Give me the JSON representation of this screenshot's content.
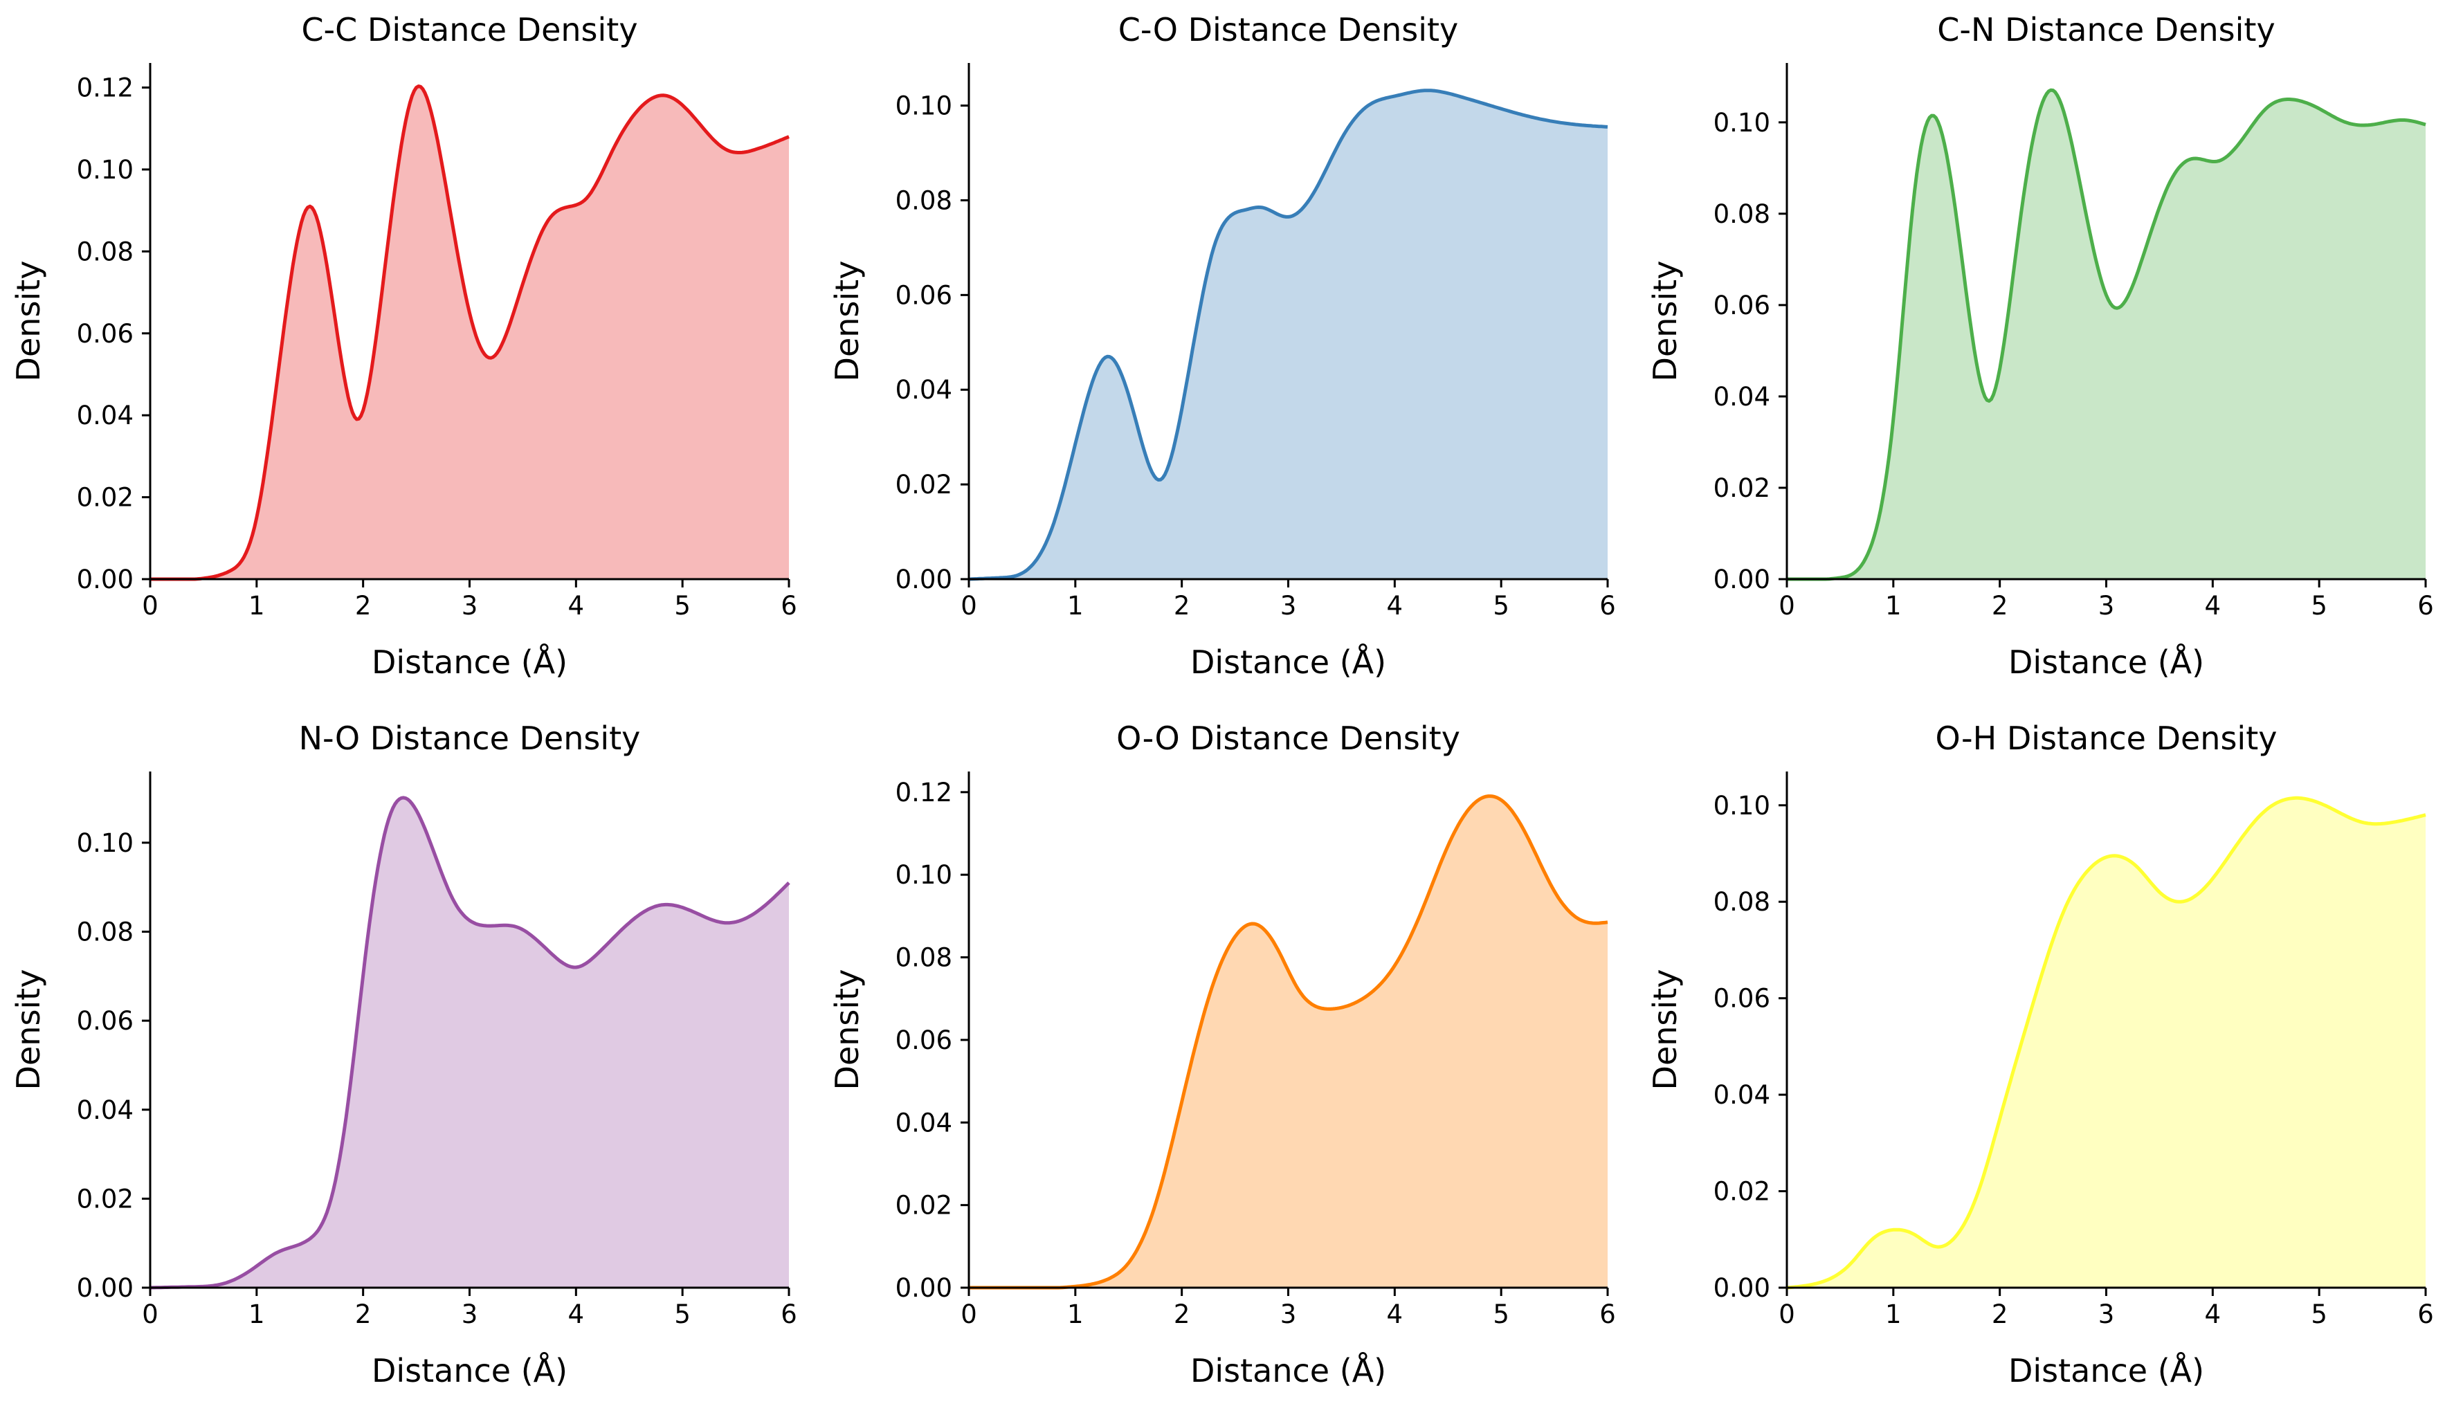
{
  "chart_data": [
    {
      "type": "area",
      "title": "C-C Distance Density",
      "xlabel": "Distance (Å)",
      "ylabel": "Density",
      "color": "#e41a1c",
      "xlim": [
        0,
        6
      ],
      "ylim": [
        0,
        0.126
      ],
      "xticks": [
        0,
        1,
        2,
        3,
        4,
        5,
        6
      ],
      "yticks": [
        0.0,
        0.02,
        0.04,
        0.06,
        0.08,
        0.1,
        0.12
      ],
      "x": [
        0,
        0.5,
        0.75,
        1.0,
        1.25,
        1.5,
        1.7,
        1.95,
        2.2,
        2.5,
        2.75,
        3.0,
        3.2,
        3.45,
        3.75,
        3.95,
        4.1,
        4.35,
        4.6,
        4.85,
        5.1,
        5.4,
        5.7,
        6.0
      ],
      "y": [
        0,
        0.0002,
        0.002,
        0.015,
        0.06,
        0.091,
        0.07,
        0.039,
        0.075,
        0.12,
        0.1,
        0.065,
        0.054,
        0.068,
        0.088,
        0.091,
        0.093,
        0.105,
        0.115,
        0.118,
        0.113,
        0.105,
        0.105,
        0.108
      ]
    },
    {
      "type": "area",
      "title": "C-O Distance Density",
      "xlabel": "Distance (Å)",
      "ylabel": "Density",
      "color": "#377eb8",
      "xlim": [
        0,
        6
      ],
      "ylim": [
        0,
        0.109
      ],
      "xticks": [
        0,
        1,
        2,
        3,
        4,
        5,
        6
      ],
      "yticks": [
        0.0,
        0.02,
        0.04,
        0.06,
        0.08,
        0.1
      ],
      "x": [
        0,
        0.3,
        0.55,
        0.8,
        1.05,
        1.3,
        1.55,
        1.8,
        2.05,
        2.3,
        2.6,
        2.75,
        3.0,
        3.25,
        3.5,
        3.75,
        4.0,
        4.3,
        4.6,
        4.9,
        5.3,
        5.7,
        6.0
      ],
      "y": [
        0,
        0.0003,
        0.002,
        0.012,
        0.033,
        0.047,
        0.035,
        0.021,
        0.042,
        0.07,
        0.078,
        0.0785,
        0.0765,
        0.082,
        0.093,
        0.1,
        0.102,
        0.1032,
        0.102,
        0.1,
        0.0975,
        0.096,
        0.0955
      ]
    },
    {
      "type": "area",
      "title": "C-N Distance Density",
      "xlabel": "Distance (Å)",
      "ylabel": "Density",
      "color": "#4daf4a",
      "xlim": [
        0,
        6
      ],
      "ylim": [
        0,
        0.113
      ],
      "xticks": [
        0,
        1,
        2,
        3,
        4,
        5,
        6
      ],
      "yticks": [
        0.0,
        0.02,
        0.04,
        0.06,
        0.08,
        0.1
      ],
      "x": [
        0,
        0.5,
        0.75,
        1.0,
        1.2,
        1.4,
        1.6,
        1.9,
        2.2,
        2.5,
        2.75,
        3.05,
        3.35,
        3.6,
        3.8,
        4.05,
        4.3,
        4.5,
        4.75,
        5.0,
        5.25,
        5.5,
        5.8,
        6.0
      ],
      "y": [
        0,
        0.0003,
        0.005,
        0.035,
        0.085,
        0.101,
        0.078,
        0.039,
        0.08,
        0.107,
        0.087,
        0.06,
        0.071,
        0.087,
        0.092,
        0.0915,
        0.097,
        0.103,
        0.105,
        0.103,
        0.1,
        0.0995,
        0.1005,
        0.0995
      ]
    },
    {
      "type": "area",
      "title": "N-O Distance Density",
      "xlabel": "Distance (Å)",
      "ylabel": "Density",
      "color": "#984ea3",
      "xlim": [
        0,
        6
      ],
      "ylim": [
        0,
        0.116
      ],
      "xticks": [
        0,
        1,
        2,
        3,
        4,
        5,
        6
      ],
      "yticks": [
        0.0,
        0.02,
        0.04,
        0.06,
        0.08,
        0.1
      ],
      "x": [
        0,
        0.4,
        0.7,
        0.95,
        1.2,
        1.5,
        1.7,
        1.85,
        2.05,
        2.25,
        2.4,
        2.6,
        2.85,
        3.1,
        3.45,
        3.75,
        4.0,
        4.2,
        4.5,
        4.8,
        5.1,
        5.4,
        5.7,
        6.0
      ],
      "y": [
        0,
        0.0002,
        0.001,
        0.004,
        0.008,
        0.011,
        0.02,
        0.04,
        0.08,
        0.106,
        0.11,
        0.102,
        0.087,
        0.0815,
        0.081,
        0.0755,
        0.072,
        0.075,
        0.082,
        0.086,
        0.0845,
        0.082,
        0.0845,
        0.091
      ]
    },
    {
      "type": "area",
      "title": "O-O Distance Density",
      "xlabel": "Distance (Å)",
      "ylabel": "Density",
      "color": "#ff7f00",
      "xlim": [
        0,
        6
      ],
      "ylim": [
        0,
        0.125
      ],
      "xticks": [
        0,
        1,
        2,
        3,
        4,
        5,
        6
      ],
      "yticks": [
        0.0,
        0.02,
        0.04,
        0.06,
        0.08,
        0.1,
        0.12
      ],
      "x": [
        0,
        1.0,
        1.3,
        1.5,
        1.75,
        2.0,
        2.25,
        2.5,
        2.7,
        2.9,
        3.1,
        3.4,
        3.7,
        4.0,
        4.25,
        4.5,
        4.7,
        4.87,
        5.05,
        5.25,
        5.5,
        5.75,
        6.0
      ],
      "y": [
        0,
        0.0003,
        0.002,
        0.006,
        0.02,
        0.045,
        0.07,
        0.085,
        0.088,
        0.082,
        0.072,
        0.0675,
        0.07,
        0.078,
        0.091,
        0.107,
        0.116,
        0.119,
        0.117,
        0.109,
        0.096,
        0.089,
        0.0885
      ]
    },
    {
      "type": "area",
      "title": "O-H Distance Density",
      "xlabel": "Distance (Å)",
      "ylabel": "Density",
      "color": "#ffff33",
      "xlim": [
        0,
        6
      ],
      "ylim": [
        0,
        0.107
      ],
      "xticks": [
        0,
        1,
        2,
        3,
        4,
        5,
        6
      ],
      "yticks": [
        0.0,
        0.02,
        0.04,
        0.06,
        0.08,
        0.1
      ],
      "x": [
        0,
        0.3,
        0.6,
        0.8,
        1.0,
        1.2,
        1.4,
        1.6,
        1.8,
        2.0,
        2.3,
        2.6,
        2.85,
        3.05,
        3.3,
        3.5,
        3.7,
        3.95,
        4.2,
        4.5,
        4.8,
        5.1,
        5.4,
        5.7,
        6.0
      ],
      "y": [
        0,
        0.001,
        0.005,
        0.01,
        0.012,
        0.011,
        0.0085,
        0.011,
        0.02,
        0.035,
        0.058,
        0.078,
        0.087,
        0.0895,
        0.087,
        0.082,
        0.08,
        0.0835,
        0.091,
        0.099,
        0.1015,
        0.0995,
        0.0965,
        0.0965,
        0.098
      ]
    }
  ]
}
